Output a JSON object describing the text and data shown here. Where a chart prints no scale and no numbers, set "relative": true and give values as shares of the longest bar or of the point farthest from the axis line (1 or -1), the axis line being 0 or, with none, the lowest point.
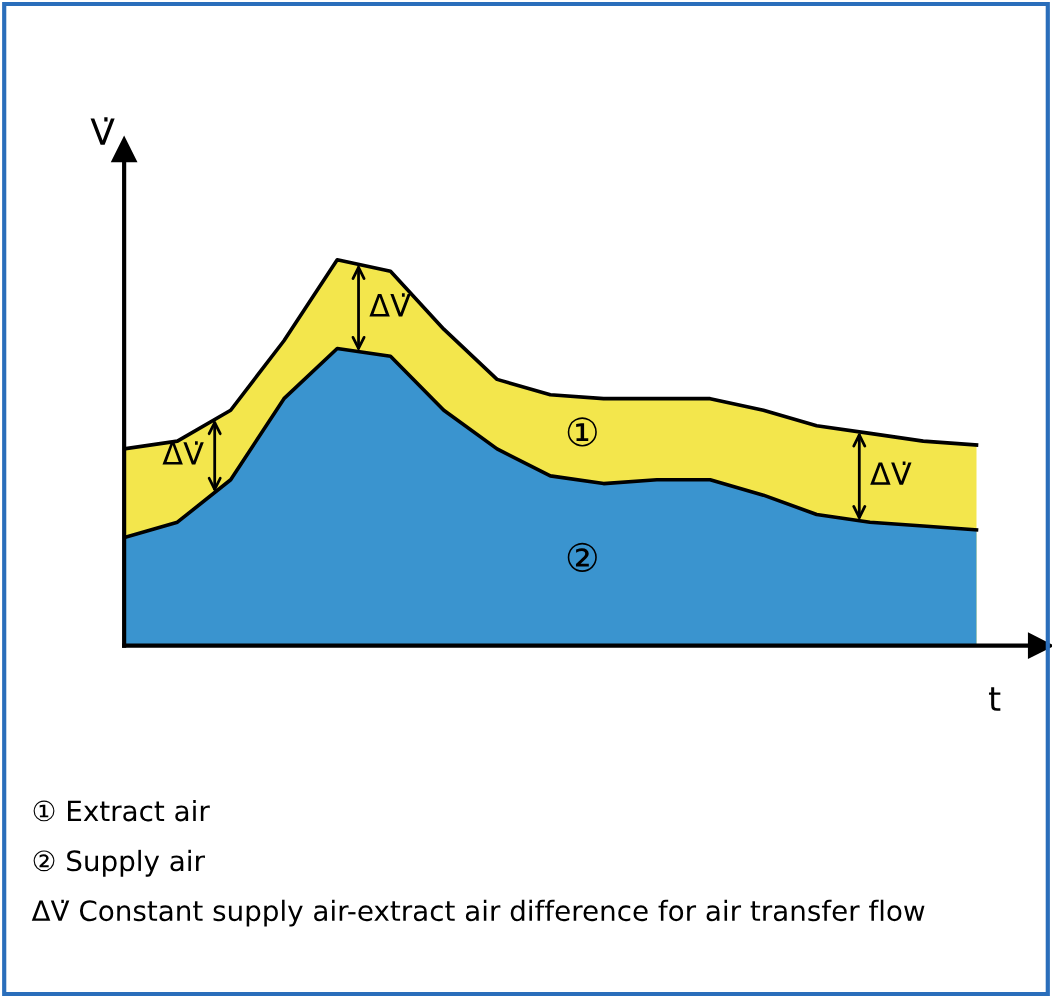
{
  "chart_data": {
    "type": "area",
    "relative": true,
    "xlabel": "t",
    "ylabel": "V̇",
    "categories": [
      null,
      null,
      null,
      null,
      null,
      null,
      null,
      null,
      null,
      null,
      null,
      null,
      null,
      null,
      null,
      null,
      null
    ],
    "series": [
      {
        "name": "①",
        "color": "#f3e64c",
        "values": [
          0.51,
          0.53,
          0.61,
          0.79,
          1.0,
          0.97,
          0.82,
          0.69,
          0.65,
          0.64,
          0.64,
          0.64,
          0.61,
          0.57,
          0.55,
          0.53,
          0.52
        ]
      },
      {
        "name": "②",
        "color": "#3a94cf",
        "values": [
          0.28,
          0.32,
          0.43,
          0.64,
          0.77,
          0.75,
          0.61,
          0.51,
          0.44,
          0.42,
          0.43,
          0.43,
          0.39,
          0.34,
          0.32,
          0.31,
          0.3
        ]
      }
    ],
    "annotations": [
      "ΔV̇",
      "ΔV̇",
      "ΔV̇",
      "① Extract air",
      "② Supply air",
      "ΔV̇ Constant supply air-extract air difference for air transfer flow"
    ]
  }
}
